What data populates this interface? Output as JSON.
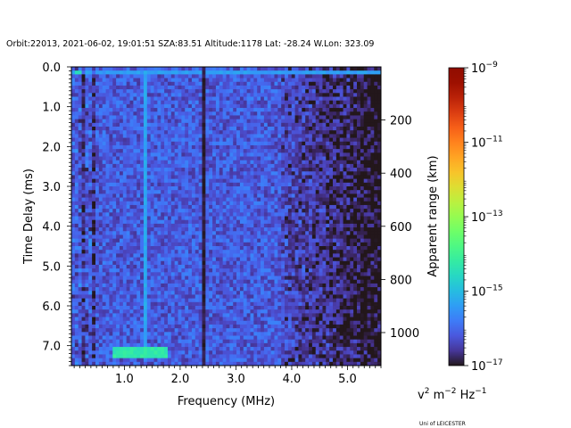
{
  "title": "Orbit:22013, 2021-06-02, 19:01:51 SZA:83.51 Altitude:1178 Lat: -28.24 W.Lon: 323.09",
  "footer": "Uni of LEICESTER",
  "chart_data": {
    "type": "heatmap",
    "xlabel": "Frequency (MHz)",
    "ylabel": "Time Delay (ms)",
    "y2label": "Apparent range (km)",
    "xlim": [
      0.05,
      5.6
    ],
    "ylim": [
      7.5,
      0.0
    ],
    "xticks": [
      1.0,
      2.0,
      3.0,
      4.0,
      5.0
    ],
    "xtick_labels": [
      "1.0",
      "2.0",
      "3.0",
      "4.0",
      "5.0"
    ],
    "yticks": [
      0.0,
      1.0,
      2.0,
      3.0,
      4.0,
      5.0,
      6.0,
      7.0
    ],
    "ytick_labels": [
      "0.0",
      "1.0",
      "2.0",
      "3.0",
      "4.0",
      "5.0",
      "6.0",
      "7.0"
    ],
    "y2ticks_km": [
      200,
      400,
      600,
      800,
      1000
    ],
    "y2tick_labels": [
      "200",
      "400",
      "600",
      "800",
      "1000"
    ],
    "km_per_ms": 149.9,
    "colorbar": {
      "label_base": "v",
      "label_rest": " m",
      "label_rest2": " Hz",
      "sup1": "2",
      "sup2": "−2",
      "sup3": "−1",
      "scale": "log",
      "colormap": "turbo",
      "range": [
        1e-17,
        1e-09
      ],
      "ticks_exponent": [
        -17,
        -15,
        -13,
        -11,
        -9
      ],
      "tick_base": "10",
      "tick_exps": [
        "−17",
        "−15",
        "−13",
        "−11",
        "−9"
      ]
    },
    "features": [
      {
        "name": "top echo band",
        "delay_ms": 0.15,
        "freq_range": [
          0.05,
          5.6
        ],
        "log_power": -15.4
      },
      {
        "name": "bright near-surface line",
        "delay_ms": 0.15,
        "freq_range": [
          0.1,
          0.25
        ],
        "log_power": -14.5
      },
      {
        "name": "vertical emission line",
        "freq_mhz": 1.35,
        "delay_range": [
          0.1,
          7.2
        ],
        "log_power": -15.3
      },
      {
        "name": "surface reflection trace",
        "delay_range": [
          7.0,
          7.3
        ],
        "freq_range": [
          0.8,
          1.8
        ],
        "log_power": -14.3
      },
      {
        "name": "low-power gap",
        "freq_mhz": 2.42,
        "log_power": -17.0
      }
    ]
  }
}
